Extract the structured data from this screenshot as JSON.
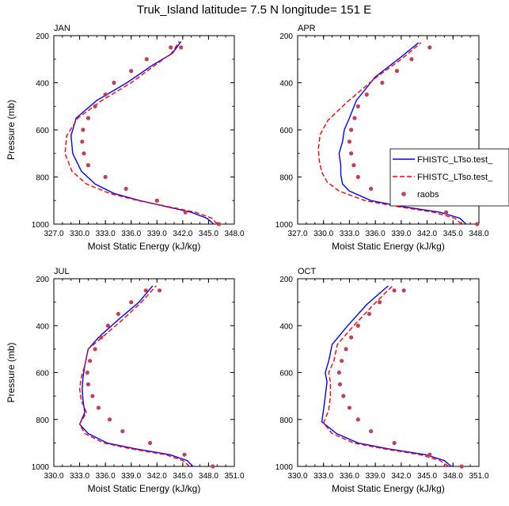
{
  "title": "Truk_Island  latitude= 7.5 N longitude= 151 E",
  "legend": {
    "entries": [
      {
        "label": "FHISTC_LTso.test_",
        "color": "#0000ff",
        "style": "solid"
      },
      {
        "label": "FHISTC_LTso.test_",
        "color": "#ff0000",
        "style": "dashed"
      },
      {
        "label": "raobs",
        "color": "#c0405a",
        "style": "marker"
      }
    ]
  },
  "chart_data": [
    {
      "type": "line",
      "panel": "JAN",
      "title": "JAN",
      "xlabel": "Moist Static Energy (kJ/kg)",
      "ylabel": "Pressure (mb)",
      "xlim": [
        327.0,
        348.0
      ],
      "ylim": [
        1000,
        200
      ],
      "xticks": [
        "327.0",
        "330.0",
        "333.0",
        "336.0",
        "339.0",
        "342.0",
        "345.0",
        "348.0"
      ],
      "yticks": [
        "200",
        "400",
        "600",
        "800",
        "1000"
      ],
      "series": [
        {
          "name": "FHISTC_LTso.test_ (blue)",
          "color": "#0000ff",
          "dash": "",
          "x": [
            345.6,
            344.8,
            343.0,
            340.0,
            337.0,
            334.0,
            331.8,
            330.2,
            329.2,
            329.0,
            329.6,
            332.0,
            335.5,
            338.5,
            340.8,
            341.8
          ],
          "y": [
            1000,
            975,
            950,
            925,
            900,
            870,
            830,
            775,
            700,
            625,
            550,
            475,
            400,
            325,
            275,
            225
          ]
        },
        {
          "name": "FHISTC_LTso.test_ (red dashed)",
          "color": "#ff0000",
          "dash": "6,3",
          "x": [
            346.0,
            345.4,
            343.5,
            340.2,
            336.8,
            333.5,
            330.8,
            329.1,
            328.3,
            328.5,
            329.8,
            332.6,
            336.0,
            338.8,
            340.7,
            341.6
          ],
          "y": [
            1000,
            975,
            950,
            925,
            900,
            870,
            830,
            775,
            700,
            625,
            550,
            475,
            400,
            325,
            275,
            225
          ]
        },
        {
          "name": "raobs",
          "color": "#c0405a",
          "marker": true,
          "x": [
            346.2,
            342.3,
            339.0,
            335.4,
            333.0,
            331.0,
            330.5,
            330.3,
            330.4,
            331.0,
            331.8,
            333.0,
            334.0,
            336.0,
            337.8,
            340.6,
            341.8
          ],
          "y": [
            1000,
            950,
            900,
            850,
            800,
            750,
            700,
            650,
            600,
            550,
            500,
            450,
            400,
            350,
            300,
            250,
            250
          ]
        }
      ]
    },
    {
      "type": "line",
      "panel": "APR",
      "title": "APR",
      "xlabel": "Moist Static Energy (kJ/kg)",
      "ylabel": "",
      "xlim": [
        327.0,
        348.0
      ],
      "ylim": [
        1000,
        200
      ],
      "xticks": [
        "327.0",
        "330.0",
        "333.0",
        "336.0",
        "339.0",
        "342.0",
        "345.0",
        "348.0"
      ],
      "yticks": [
        "200",
        "400",
        "600",
        "800",
        "1000"
      ],
      "series": [
        {
          "name": "FHISTC_LTso.test_ (blue)",
          "color": "#0000ff",
          "dash": "",
          "x": [
            346.5,
            345.8,
            343.5,
            339.0,
            335.5,
            333.0,
            332.2,
            332.0,
            332.0,
            331.8,
            332.2,
            332.4,
            333.0,
            333.8,
            336.0,
            339.0,
            341.0
          ],
          "y": [
            1000,
            975,
            950,
            925,
            900,
            860,
            830,
            790,
            750,
            700,
            650,
            600,
            550,
            475,
            375,
            290,
            230
          ]
        },
        {
          "name": "FHISTC_LTso.test_ (red dashed)",
          "color": "#ff0000",
          "dash": "6,3",
          "x": [
            346.0,
            345.2,
            342.8,
            338.5,
            334.8,
            331.8,
            330.4,
            329.8,
            329.5,
            329.4,
            329.6,
            330.5,
            332.8,
            336.0,
            339.0,
            341.3
          ],
          "y": [
            1000,
            975,
            950,
            925,
            900,
            860,
            820,
            780,
            730,
            680,
            620,
            560,
            480,
            380,
            300,
            230
          ]
        },
        {
          "name": "raobs",
          "color": "#c0405a",
          "marker": true,
          "x": [
            347.8,
            344.2,
            339.0,
            335.5,
            334.0,
            333.5,
            333.2,
            333.0,
            333.2,
            333.6,
            334.0,
            335.0,
            336.8,
            338.5,
            340.2,
            342.3
          ],
          "y": [
            1000,
            950,
            900,
            850,
            800,
            750,
            700,
            650,
            600,
            550,
            500,
            450,
            400,
            350,
            300,
            250
          ]
        }
      ]
    },
    {
      "type": "line",
      "panel": "JUL",
      "title": "JUL",
      "xlabel": "Moist Static Energy (kJ/kg)",
      "ylabel": "Pressure (mb)",
      "xlim": [
        330.0,
        351.0
      ],
      "ylim": [
        1000,
        200
      ],
      "xticks": [
        "330.0",
        "333.0",
        "336.0",
        "339.0",
        "342.0",
        "345.0",
        "348.0",
        "351.0"
      ],
      "yticks": [
        "200",
        "400",
        "600",
        "800",
        "1000"
      ],
      "series": [
        {
          "name": "FHISTC_LTso.test_ (blue)",
          "color": "#0000ff",
          "dash": "",
          "x": [
            346.2,
            345.5,
            343.5,
            339.5,
            336.2,
            334.0,
            333.0,
            333.6,
            333.4,
            333.3,
            333.4,
            333.6,
            334.0,
            335.2,
            337.5,
            339.9,
            341.5
          ],
          "y": [
            1000,
            975,
            950,
            925,
            900,
            860,
            820,
            770,
            720,
            670,
            620,
            570,
            500,
            450,
            375,
            300,
            230
          ]
        },
        {
          "name": "FHISTC_LTso.test_ (red dashed)",
          "color": "#ff0000",
          "dash": "6,3",
          "x": [
            345.8,
            345.0,
            343.0,
            339.0,
            335.8,
            333.6,
            333.0,
            333.8,
            333.2,
            333.0,
            333.2,
            333.6,
            334.0,
            335.6,
            338.0,
            340.2,
            341.9
          ],
          "y": [
            1000,
            975,
            950,
            925,
            900,
            860,
            820,
            770,
            720,
            670,
            620,
            570,
            500,
            450,
            375,
            300,
            230
          ]
        },
        {
          "name": "raobs",
          "color": "#c0405a",
          "marker": true,
          "x": [
            348.5,
            345.2,
            341.2,
            338.0,
            336.5,
            335.2,
            334.5,
            334.0,
            333.9,
            334.2,
            334.8,
            335.5,
            336.3,
            337.5,
            339.0,
            340.7,
            342.3
          ],
          "y": [
            1000,
            950,
            900,
            850,
            800,
            750,
            700,
            650,
            600,
            550,
            500,
            450,
            400,
            350,
            300,
            250,
            250
          ]
        }
      ]
    },
    {
      "type": "line",
      "panel": "OCT",
      "title": "OCT",
      "xlabel": "Moist Static Energy (kJ/kg)",
      "ylabel": "",
      "xlim": [
        330.0,
        351.0
      ],
      "ylim": [
        1000,
        200
      ],
      "xticks": [
        "330.0",
        "333.0",
        "336.0",
        "339.0",
        "342.0",
        "345.0",
        "348.0",
        "351.0"
      ],
      "yticks": [
        "200",
        "400",
        "600",
        "800",
        "1000"
      ],
      "series": [
        {
          "name": "FHISTC_LTso.test_ (blue)",
          "color": "#0000ff",
          "dash": "",
          "x": [
            347.8,
            347.0,
            344.8,
            340.5,
            337.0,
            334.5,
            332.8,
            333.0,
            333.2,
            333.4,
            333.2,
            333.6,
            334.0,
            335.8,
            338.0,
            340.5
          ],
          "y": [
            1000,
            975,
            950,
            925,
            900,
            860,
            810,
            760,
            700,
            640,
            600,
            550,
            480,
            400,
            310,
            230
          ]
        },
        {
          "name": "FHISTC_LTso.test_ (red dashed)",
          "color": "#ff0000",
          "dash": "6,3",
          "x": [
            347.5,
            346.5,
            344.2,
            340.0,
            336.5,
            334.0,
            333.0,
            333.6,
            333.8,
            333.8,
            333.6,
            334.2,
            334.6,
            336.5,
            338.8,
            341.0
          ],
          "y": [
            1000,
            975,
            950,
            925,
            900,
            860,
            815,
            760,
            700,
            640,
            600,
            550,
            480,
            400,
            310,
            230
          ]
        },
        {
          "name": "raobs",
          "color": "#c0405a",
          "marker": true,
          "x": [
            349.0,
            345.3,
            341.2,
            338.5,
            337.0,
            336.0,
            335.3,
            334.9,
            334.8,
            335.1,
            335.6,
            336.2,
            337.0,
            338.3,
            339.5,
            341.2,
            342.3
          ],
          "y": [
            1000,
            950,
            900,
            850,
            800,
            750,
            700,
            650,
            600,
            550,
            500,
            450,
            400,
            350,
            300,
            250,
            250
          ]
        }
      ]
    }
  ]
}
